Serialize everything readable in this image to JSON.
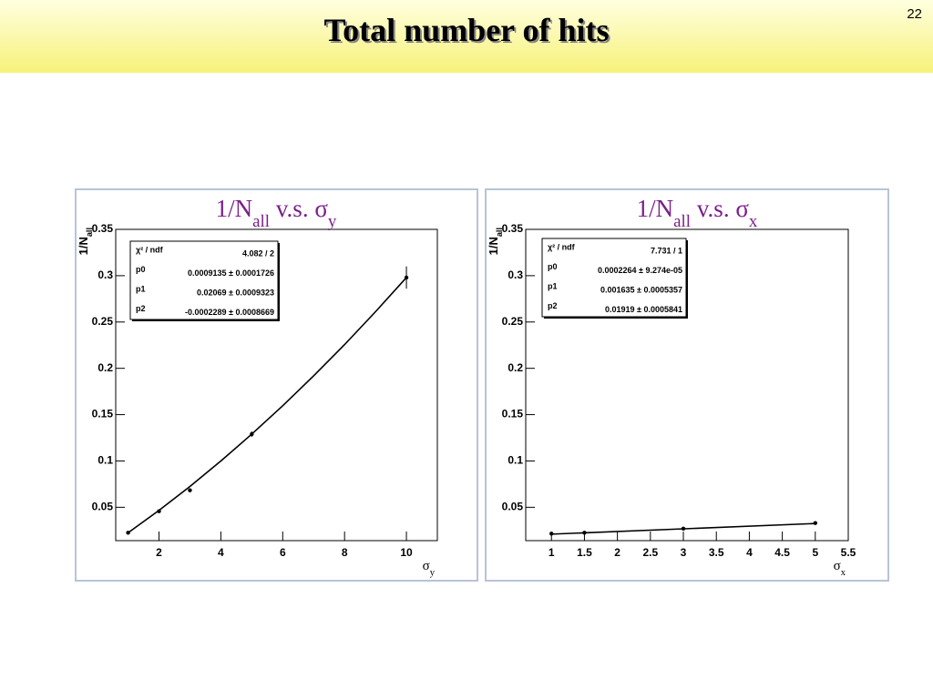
{
  "header": {
    "title": "Total number of hits",
    "page_number": "22"
  },
  "chart_data": [
    {
      "type": "scatter",
      "title": [
        "1/N",
        "all",
        " v.s. σ",
        "y"
      ],
      "y_label": [
        "1/N",
        "all"
      ],
      "x_label": [
        "σ",
        "y"
      ],
      "x": [
        1,
        2,
        3,
        5,
        10
      ],
      "values": [
        0.0225,
        0.0457,
        0.0683,
        0.129,
        0.298
      ],
      "errors": [
        0.001,
        0.001,
        0.001,
        0.003,
        0.012
      ],
      "fit": {
        "x": [
          1,
          2,
          3,
          4,
          5,
          6,
          7,
          8,
          9,
          10
        ],
        "values": [
          0.0225,
          0.0467,
          0.0725,
          0.1,
          0.129,
          0.1596,
          0.1919,
          0.2256,
          0.2611,
          0.298
        ]
      },
      "xlim": [
        0.6,
        11
      ],
      "ylim": [
        0.014,
        0.35
      ],
      "xticks": [
        2,
        4,
        6,
        8,
        10
      ],
      "yticks": [
        0.05,
        0.1,
        0.15,
        0.2,
        0.25,
        0.3,
        0.35
      ],
      "stats": [
        {
          "label": "χ² / ndf",
          "value": "4.082 / 2"
        },
        {
          "label": "p0",
          "value": "0.0009135 ± 0.0001726"
        },
        {
          "label": "p1",
          "value": "0.02069 ± 0.0009323"
        },
        {
          "label": "p2",
          "value": "-0.0002289 ± 0.0008669"
        }
      ]
    },
    {
      "type": "scatter",
      "title": [
        "1/N",
        "all",
        " v.s. σ",
        "x"
      ],
      "y_label": [
        "1/N",
        "all"
      ],
      "x_label": [
        "σ",
        "x"
      ],
      "x": [
        1,
        1.5,
        3,
        5
      ],
      "values": [
        0.0215,
        0.0225,
        0.027,
        0.033
      ],
      "errors": [
        0.0005,
        0.0005,
        0.0005,
        0.0005
      ],
      "fit": {
        "x": [
          1,
          5
        ],
        "values": [
          0.021,
          0.0325
        ]
      },
      "xlim": [
        0.61,
        5.5
      ],
      "ylim": [
        0.014,
        0.35
      ],
      "xticks": [
        1,
        1.5,
        2,
        2.5,
        3,
        3.5,
        4,
        4.5,
        5,
        5.5
      ],
      "yticks": [
        0.05,
        0.1,
        0.15,
        0.2,
        0.25,
        0.3,
        0.35
      ],
      "stats": [
        {
          "label": "χ² / ndf",
          "value": "7.731 / 1"
        },
        {
          "label": "p0",
          "value": "0.0002264 ± 9.274e-05"
        },
        {
          "label": "p1",
          "value": "0.001635 ± 0.0005357"
        },
        {
          "label": "p2",
          "value": "0.01919 ± 0.0005841"
        }
      ]
    }
  ]
}
